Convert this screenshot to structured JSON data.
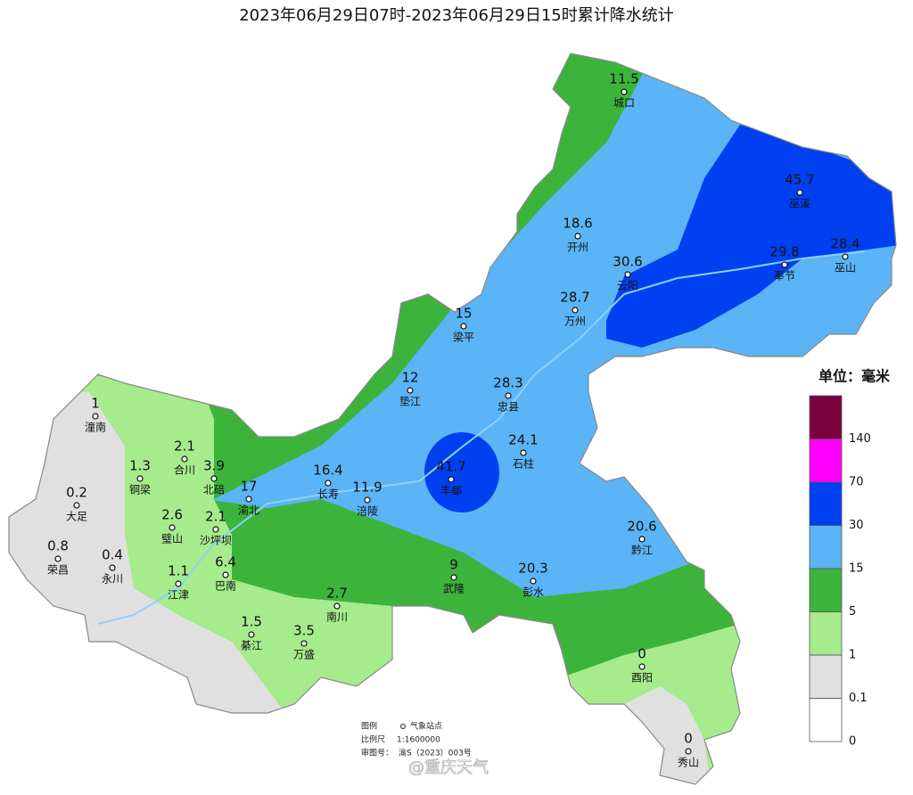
{
  "title": "2023年06月29日07时-2023年06月29日15时累计降水统计",
  "stations": [
    {
      "name": "城口",
      "value": 11.5
    },
    {
      "name": "巫溪",
      "value": 45.7
    },
    {
      "name": "开州",
      "value": 18.6
    },
    {
      "name": "云阳",
      "value": 30.6
    },
    {
      "name": "奉节",
      "value": 29.8
    },
    {
      "name": "巫山",
      "value": 28.4
    },
    {
      "name": "万州",
      "value": 28.7
    },
    {
      "name": "梁平",
      "value": 15
    },
    {
      "name": "垫江",
      "value": 12
    },
    {
      "name": "忠县",
      "value": 28.3
    },
    {
      "name": "石柱",
      "value": 24.1
    },
    {
      "name": "丰都",
      "value": 41.7
    },
    {
      "name": "长寿",
      "value": 16.4
    },
    {
      "name": "涪陵",
      "value": 11.9
    },
    {
      "name": "渝北",
      "value": 17
    },
    {
      "name": "北碚",
      "value": 3.9
    },
    {
      "name": "合川",
      "value": 2.1
    },
    {
      "name": "铜梁",
      "value": 1.3
    },
    {
      "name": "潼南",
      "value": 1
    },
    {
      "name": "大足",
      "value": 0.2
    },
    {
      "name": "荣昌",
      "value": 0.8
    },
    {
      "name": "永川",
      "value": 0.4
    },
    {
      "name": "璧山",
      "value": 2.6
    },
    {
      "name": "沙坪坝",
      "value": 2.1
    },
    {
      "name": "江津",
      "value": 1.1
    },
    {
      "name": "巴南",
      "value": 6.4
    },
    {
      "name": "南川",
      "value": 2.7
    },
    {
      "name": "綦江",
      "value": 1.5
    },
    {
      "name": "万盛",
      "value": 3.5
    },
    {
      "name": "武隆",
      "value": 9
    },
    {
      "name": "彭水",
      "value": 20.3
    },
    {
      "name": "黔江",
      "value": 20.6
    },
    {
      "name": "酉阳",
      "value": 0
    },
    {
      "name": "秀山",
      "value": 0
    }
  ],
  "legend": {
    "title": "单位：毫米",
    "items": [
      {
        "label": 0,
        "color": "#ffffff"
      },
      {
        "label": 0.1,
        "color": "#e0e0e0"
      },
      {
        "label": 1,
        "color": "#a6eb8c"
      },
      {
        "label": 5,
        "color": "#3cb43c"
      },
      {
        "label": 15,
        "color": "#5ab4f5"
      },
      {
        "label": 30,
        "color": "#0040f0"
      },
      {
        "label": 70,
        "color": "#ff00ff"
      },
      {
        "label": 140,
        "color": "#7b0040"
      }
    ]
  },
  "footer": [
    {
      "label": "图例",
      "text": "气象站点"
    },
    {
      "label": "比例尺",
      "text": "1:1600000"
    },
    {
      "label": "审图号：",
      "text": "渝S（2023）003号"
    }
  ],
  "watermark": "@重庆天气"
}
